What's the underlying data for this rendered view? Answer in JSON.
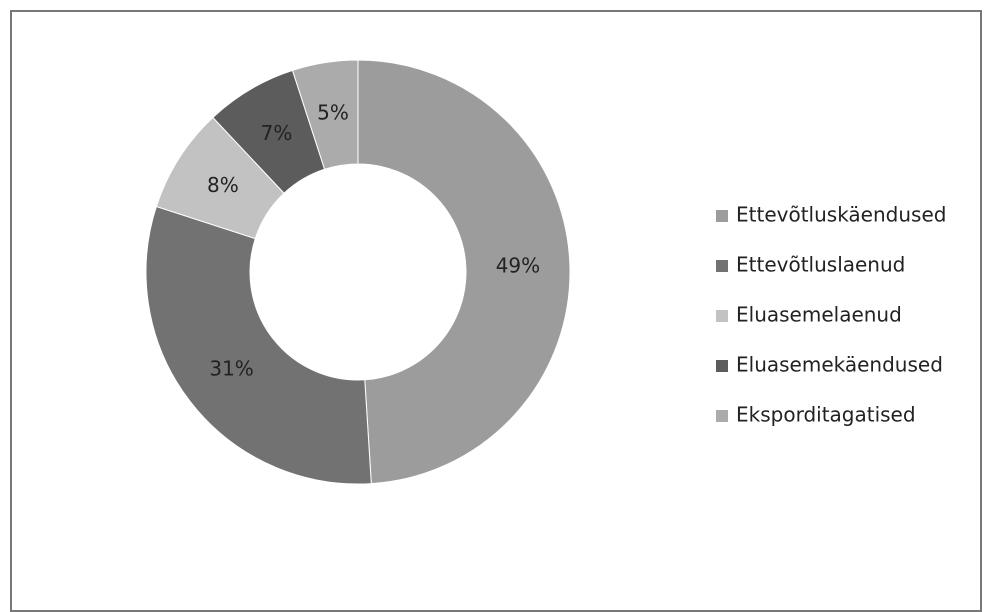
{
  "chart_data": {
    "type": "pie",
    "categories": [
      "Ettevõtluskäendused",
      "Ettevõtluslaenud",
      "Eluasemelaenud",
      "Eluasemekäendused",
      "Eksporditagatised"
    ],
    "values": [
      49,
      31,
      8,
      7,
      5
    ],
    "value_labels": [
      "49%",
      "31%",
      "8%",
      "7%",
      "5%"
    ],
    "colors": [
      "#9c9c9c",
      "#727272",
      "#c2c2c2",
      "#5c5c5c",
      "#ababab"
    ],
    "donut": true,
    "legend": "right"
  }
}
